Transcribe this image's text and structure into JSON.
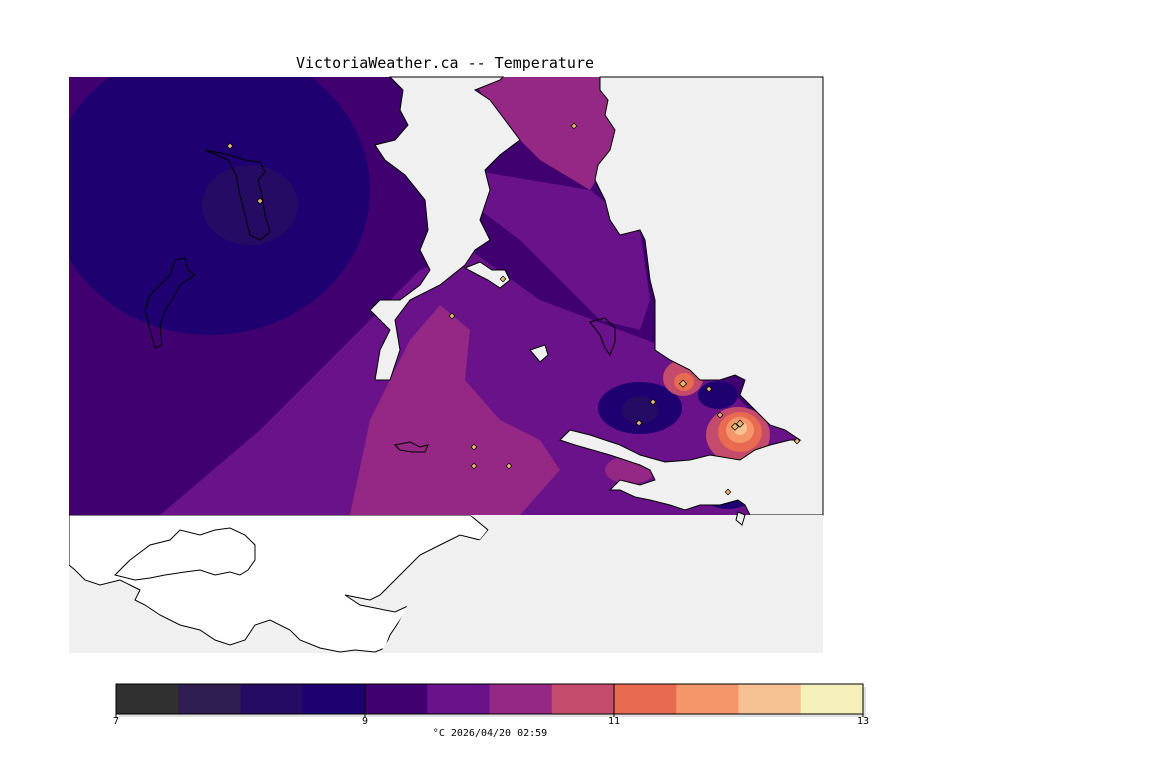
{
  "title": "VictoriaWeather.ca -- Temperature",
  "colorbar": {
    "colors": [
      "#303030",
      "#2e1d50",
      "#260b64",
      "#1e0070",
      "#400070",
      "#69128a",
      "#952785",
      "#c44b6b",
      "#e86a50",
      "#f5966a",
      "#f6c293",
      "#f5efba"
    ],
    "ticks": [
      "7",
      "9",
      "11",
      "13"
    ],
    "unit": "°C",
    "timestamp": "2026/04/20 02:59"
  },
  "caption": "°C  2026/04/20 02:59",
  "map": {
    "background": "#f0f0f0",
    "land_outline": "#000000",
    "station_marker_color": "#e6b870"
  }
}
